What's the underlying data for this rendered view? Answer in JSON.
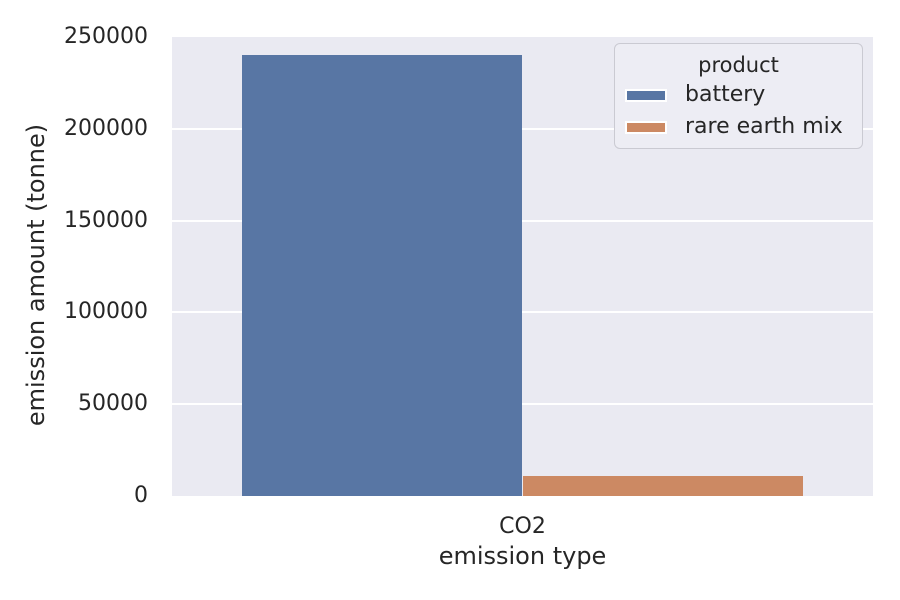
{
  "chart_data": {
    "type": "bar",
    "categories": [
      "CO2"
    ],
    "series": [
      {
        "name": "battery",
        "values": [
          240000
        ],
        "color": "#5876A4"
      },
      {
        "name": "rare earth mix",
        "values": [
          11000
        ],
        "color": "#CC8963"
      }
    ],
    "title": "",
    "xlabel": "emission type",
    "ylabel": "emission amount (tonne)",
    "ylim": [
      0,
      250000
    ],
    "yticks": [
      0,
      50000,
      100000,
      150000,
      200000,
      250000
    ],
    "grid": "horizontal white gridlines",
    "group_width_fraction": 0.8,
    "legend": {
      "title": "product",
      "position": "upper right",
      "entries": [
        "battery",
        "rare earth mix"
      ]
    }
  },
  "colors": {
    "figure_background": "#FFFFFF",
    "plot_background": "#EAEAF2",
    "gridline": "#FFFFFF",
    "text": "#262626",
    "bar_blue": "#5876A4",
    "bar_orange": "#CC8963",
    "legend_background": "#EDEDF4",
    "legend_border": "#CACAD2"
  }
}
